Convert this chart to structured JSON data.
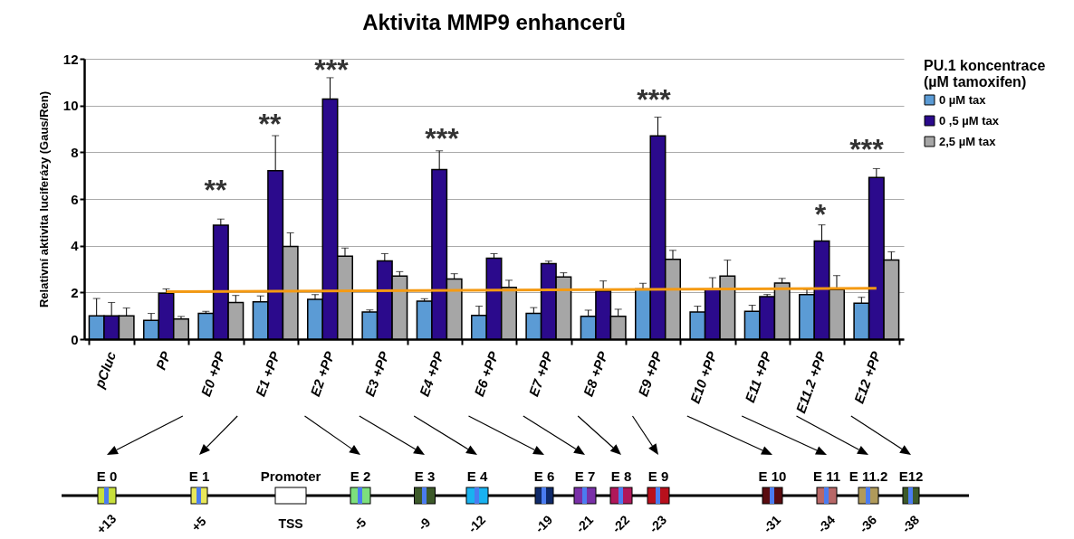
{
  "chart_data": {
    "type": "bar",
    "title": "Aktivita MMP9 enhancerů",
    "ylabel": "Relativní aktivita luciferázy (Gaus/Ren)",
    "legend_title": "PU.1 koncentrace (µM tamoxifen)",
    "legend": "right",
    "grid": "y",
    "categories": [
      "pCluc",
      "PP",
      "E0 +PP",
      "E1 +PP",
      "E2 +PP",
      "E3 +PP",
      "E4 +PP",
      "E6 +PP",
      "E7 +PP",
      "E8 +PP",
      "E9 +PP",
      "E10 +PP",
      "E11 +PP",
      "E11.2 +PP",
      "E12 +PP"
    ],
    "ylim": [
      0,
      12
    ],
    "yticks": [
      0,
      2,
      4,
      6,
      8,
      10,
      12
    ],
    "series": [
      {
        "name": "0 µM tax",
        "color": "#5b9bd5",
        "values": [
          1.0,
          0.8,
          1.1,
          1.6,
          1.7,
          1.16,
          1.63,
          1.02,
          1.1,
          0.98,
          2.15,
          1.16,
          1.19,
          1.91,
          1.54
        ],
        "errors": [
          [
            1.0,
            1.74
          ],
          [
            0.8,
            1.1
          ],
          [
            1.1,
            1.19
          ],
          [
            1.6,
            1.85
          ],
          [
            1.7,
            1.91
          ],
          [
            1.16,
            1.25
          ],
          [
            1.63,
            1.73
          ],
          [
            1.02,
            1.41
          ],
          [
            1.1,
            1.35
          ],
          [
            0.98,
            1.24
          ],
          [
            2.15,
            2.39
          ],
          [
            1.16,
            1.41
          ],
          [
            1.19,
            1.45
          ],
          [
            1.91,
            2.13
          ],
          [
            1.54,
            1.79
          ]
        ]
      },
      {
        "name": "0 ,5 µM tax",
        "color": "#2b0a8c",
        "values": [
          1.0,
          1.96,
          4.88,
          7.21,
          10.28,
          3.35,
          7.26,
          3.46,
          3.23,
          2.06,
          8.7,
          2.12,
          1.82,
          4.2,
          6.92
        ],
        "errors": [
          [
            1.0,
            1.57
          ],
          [
            1.96,
            2.15
          ],
          [
            4.88,
            5.14
          ],
          [
            7.21,
            8.71
          ],
          [
            10.28,
            11.19
          ],
          [
            3.35,
            3.66
          ],
          [
            7.26,
            8.06
          ],
          [
            3.46,
            3.66
          ],
          [
            3.23,
            3.34
          ],
          [
            2.06,
            2.49
          ],
          [
            8.7,
            9.5
          ],
          [
            2.12,
            2.63
          ],
          [
            1.82,
            1.91
          ],
          [
            4.2,
            4.89
          ],
          [
            6.92,
            7.3
          ]
        ]
      },
      {
        "name": "2,5 µM tax",
        "color": "#a6a6a6",
        "values": [
          1.0,
          0.86,
          1.57,
          3.97,
          3.55,
          2.7,
          2.57,
          2.22,
          2.66,
          0.98,
          3.42,
          2.7,
          2.4,
          2.12,
          3.39
        ],
        "errors": [
          [
            1.0,
            1.33
          ],
          [
            0.86,
            0.97
          ],
          [
            1.57,
            1.87
          ],
          [
            3.97,
            4.55
          ],
          [
            3.55,
            3.9
          ],
          [
            2.7,
            2.89
          ],
          [
            2.57,
            2.8
          ],
          [
            2.22,
            2.52
          ],
          [
            2.66,
            2.84
          ],
          [
            0.98,
            1.28
          ],
          [
            3.42,
            3.8
          ],
          [
            2.7,
            3.38
          ],
          [
            2.4,
            2.6
          ],
          [
            2.12,
            2.72
          ],
          [
            3.39,
            3.74
          ]
        ]
      },
      {
        "type": "line",
        "color": "#f59a12",
        "x": [
          "PP",
          "E12 +PP"
        ],
        "values": [
          2.03,
          2.18
        ]
      }
    ],
    "annotations": [
      "**",
      "**",
      "***",
      "***",
      "***",
      "*",
      "***",
      "E 0",
      "+13",
      "E 1",
      "+5",
      "Promoter",
      "TSS",
      "E 2",
      "-5",
      "E 3",
      "-9",
      "E 4",
      "-12",
      "E 6",
      "-19",
      "E 7",
      "-21",
      "E 8",
      "-22",
      "E 9",
      "-23",
      "E 10",
      "-31",
      "E 11",
      "-34",
      "E 11.2",
      "-36",
      "E12",
      "-38"
    ]
  }
}
